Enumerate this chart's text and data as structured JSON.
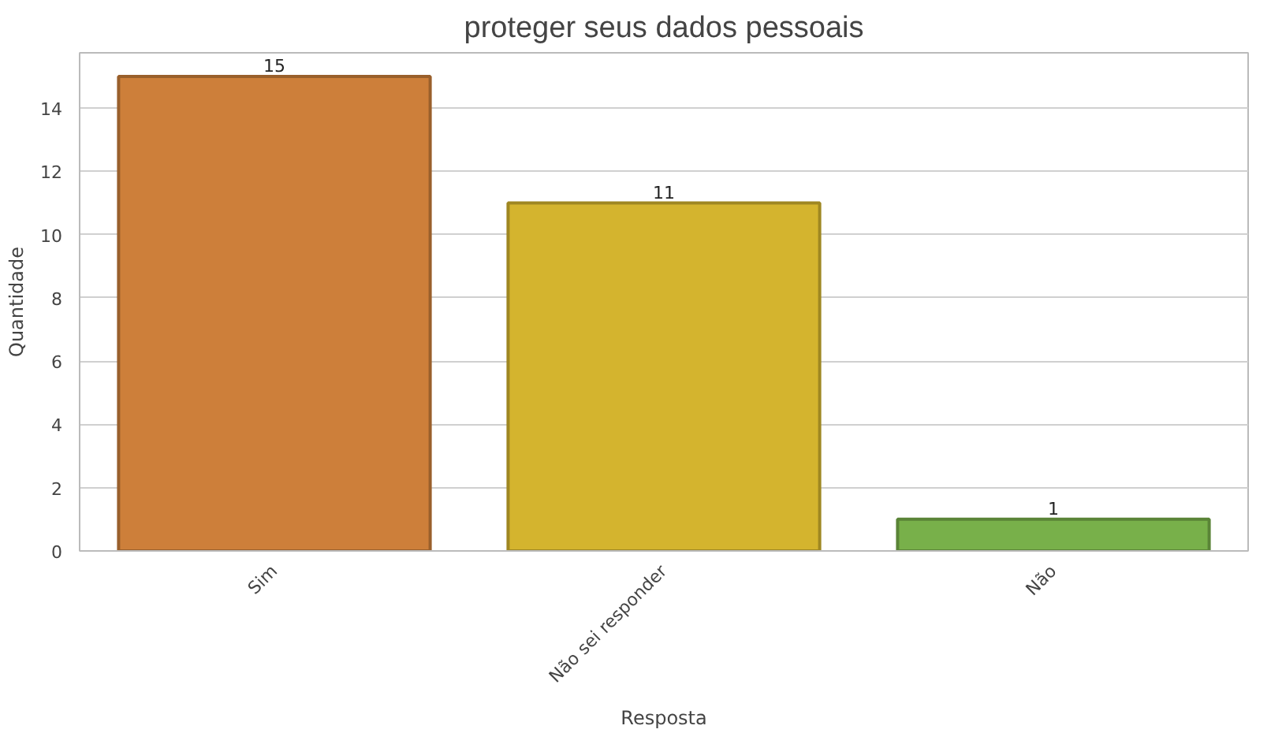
{
  "chart_data": {
    "type": "bar",
    "title": "proteger seus dados pessoais",
    "xlabel": "Resposta",
    "ylabel": "Quantidade",
    "categories": [
      "Sim",
      "Não sei responder",
      "Não"
    ],
    "values": [
      15,
      11,
      1
    ],
    "colors": [
      "#cd7f3a",
      "#d4b42e",
      "#78b04a"
    ],
    "ylim": [
      0,
      15.75
    ],
    "yticks": [
      0,
      2,
      4,
      6,
      8,
      10,
      12,
      14
    ],
    "grid": "y",
    "data_labels": true
  }
}
